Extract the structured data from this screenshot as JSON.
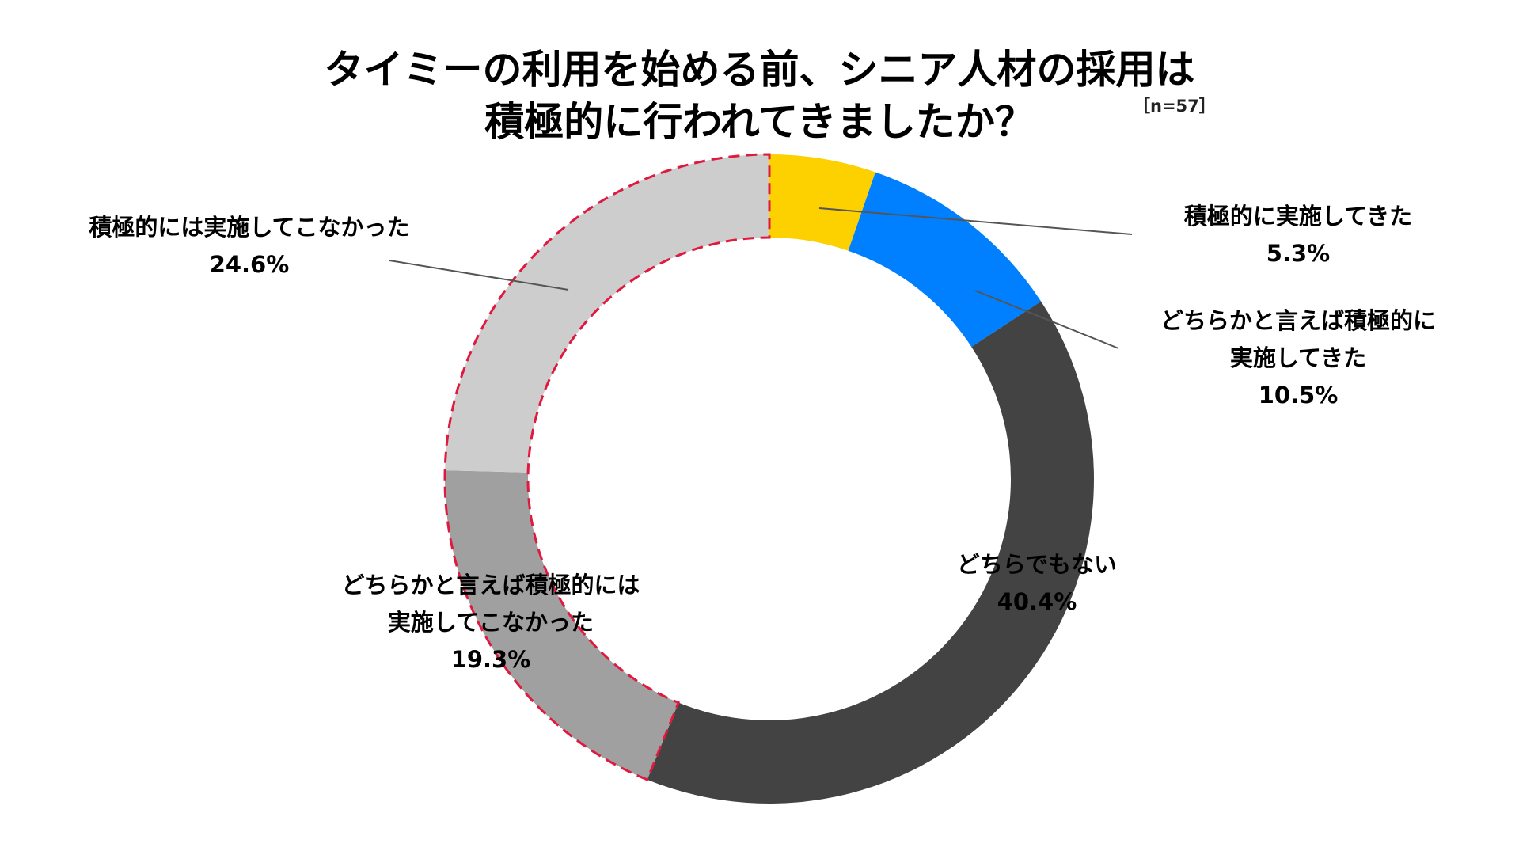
{
  "title_line1": "タイミーの利用を始める前、シニア人材の採用は",
  "title_line2": "積極的に行われてきましたか？",
  "sample_note": "［n=57］",
  "chart_data": {
    "type": "pie",
    "variant": "donut",
    "title": "タイミーの利用を始める前、シニア人材の採用は積極的に行われてきましたか？",
    "note": "［n=57］",
    "unit": "%",
    "slices": [
      {
        "key": "s1",
        "label_lines": [
          "積極的に実施してきた"
        ],
        "value": 5.3,
        "value_label": "5.3%",
        "color": "#FDD000",
        "highlight": false
      },
      {
        "key": "s2",
        "label_lines": [
          "どちらかと言えば積極的に",
          "実施してきた"
        ],
        "value": 10.5,
        "value_label": "10.5%",
        "color": "#0080FF",
        "highlight": false
      },
      {
        "key": "s3",
        "label_lines": [
          "どちらでもない"
        ],
        "value": 40.4,
        "value_label": "40.4%",
        "color": "#434343",
        "highlight": false
      },
      {
        "key": "s4",
        "label_lines": [
          "どちらかと言えば積極的には",
          "実施してこなかった"
        ],
        "value": 19.3,
        "value_label": "19.3%",
        "color": "#A0A0A0",
        "highlight": true
      },
      {
        "key": "s5",
        "label_lines": [
          "積極的には実施してこなかった"
        ],
        "value": 24.6,
        "value_label": "24.6%",
        "color": "#CDCDCD",
        "highlight": true
      }
    ],
    "highlight_color": "#E0193F",
    "start_angle_deg": 0,
    "direction": "clockwise"
  }
}
